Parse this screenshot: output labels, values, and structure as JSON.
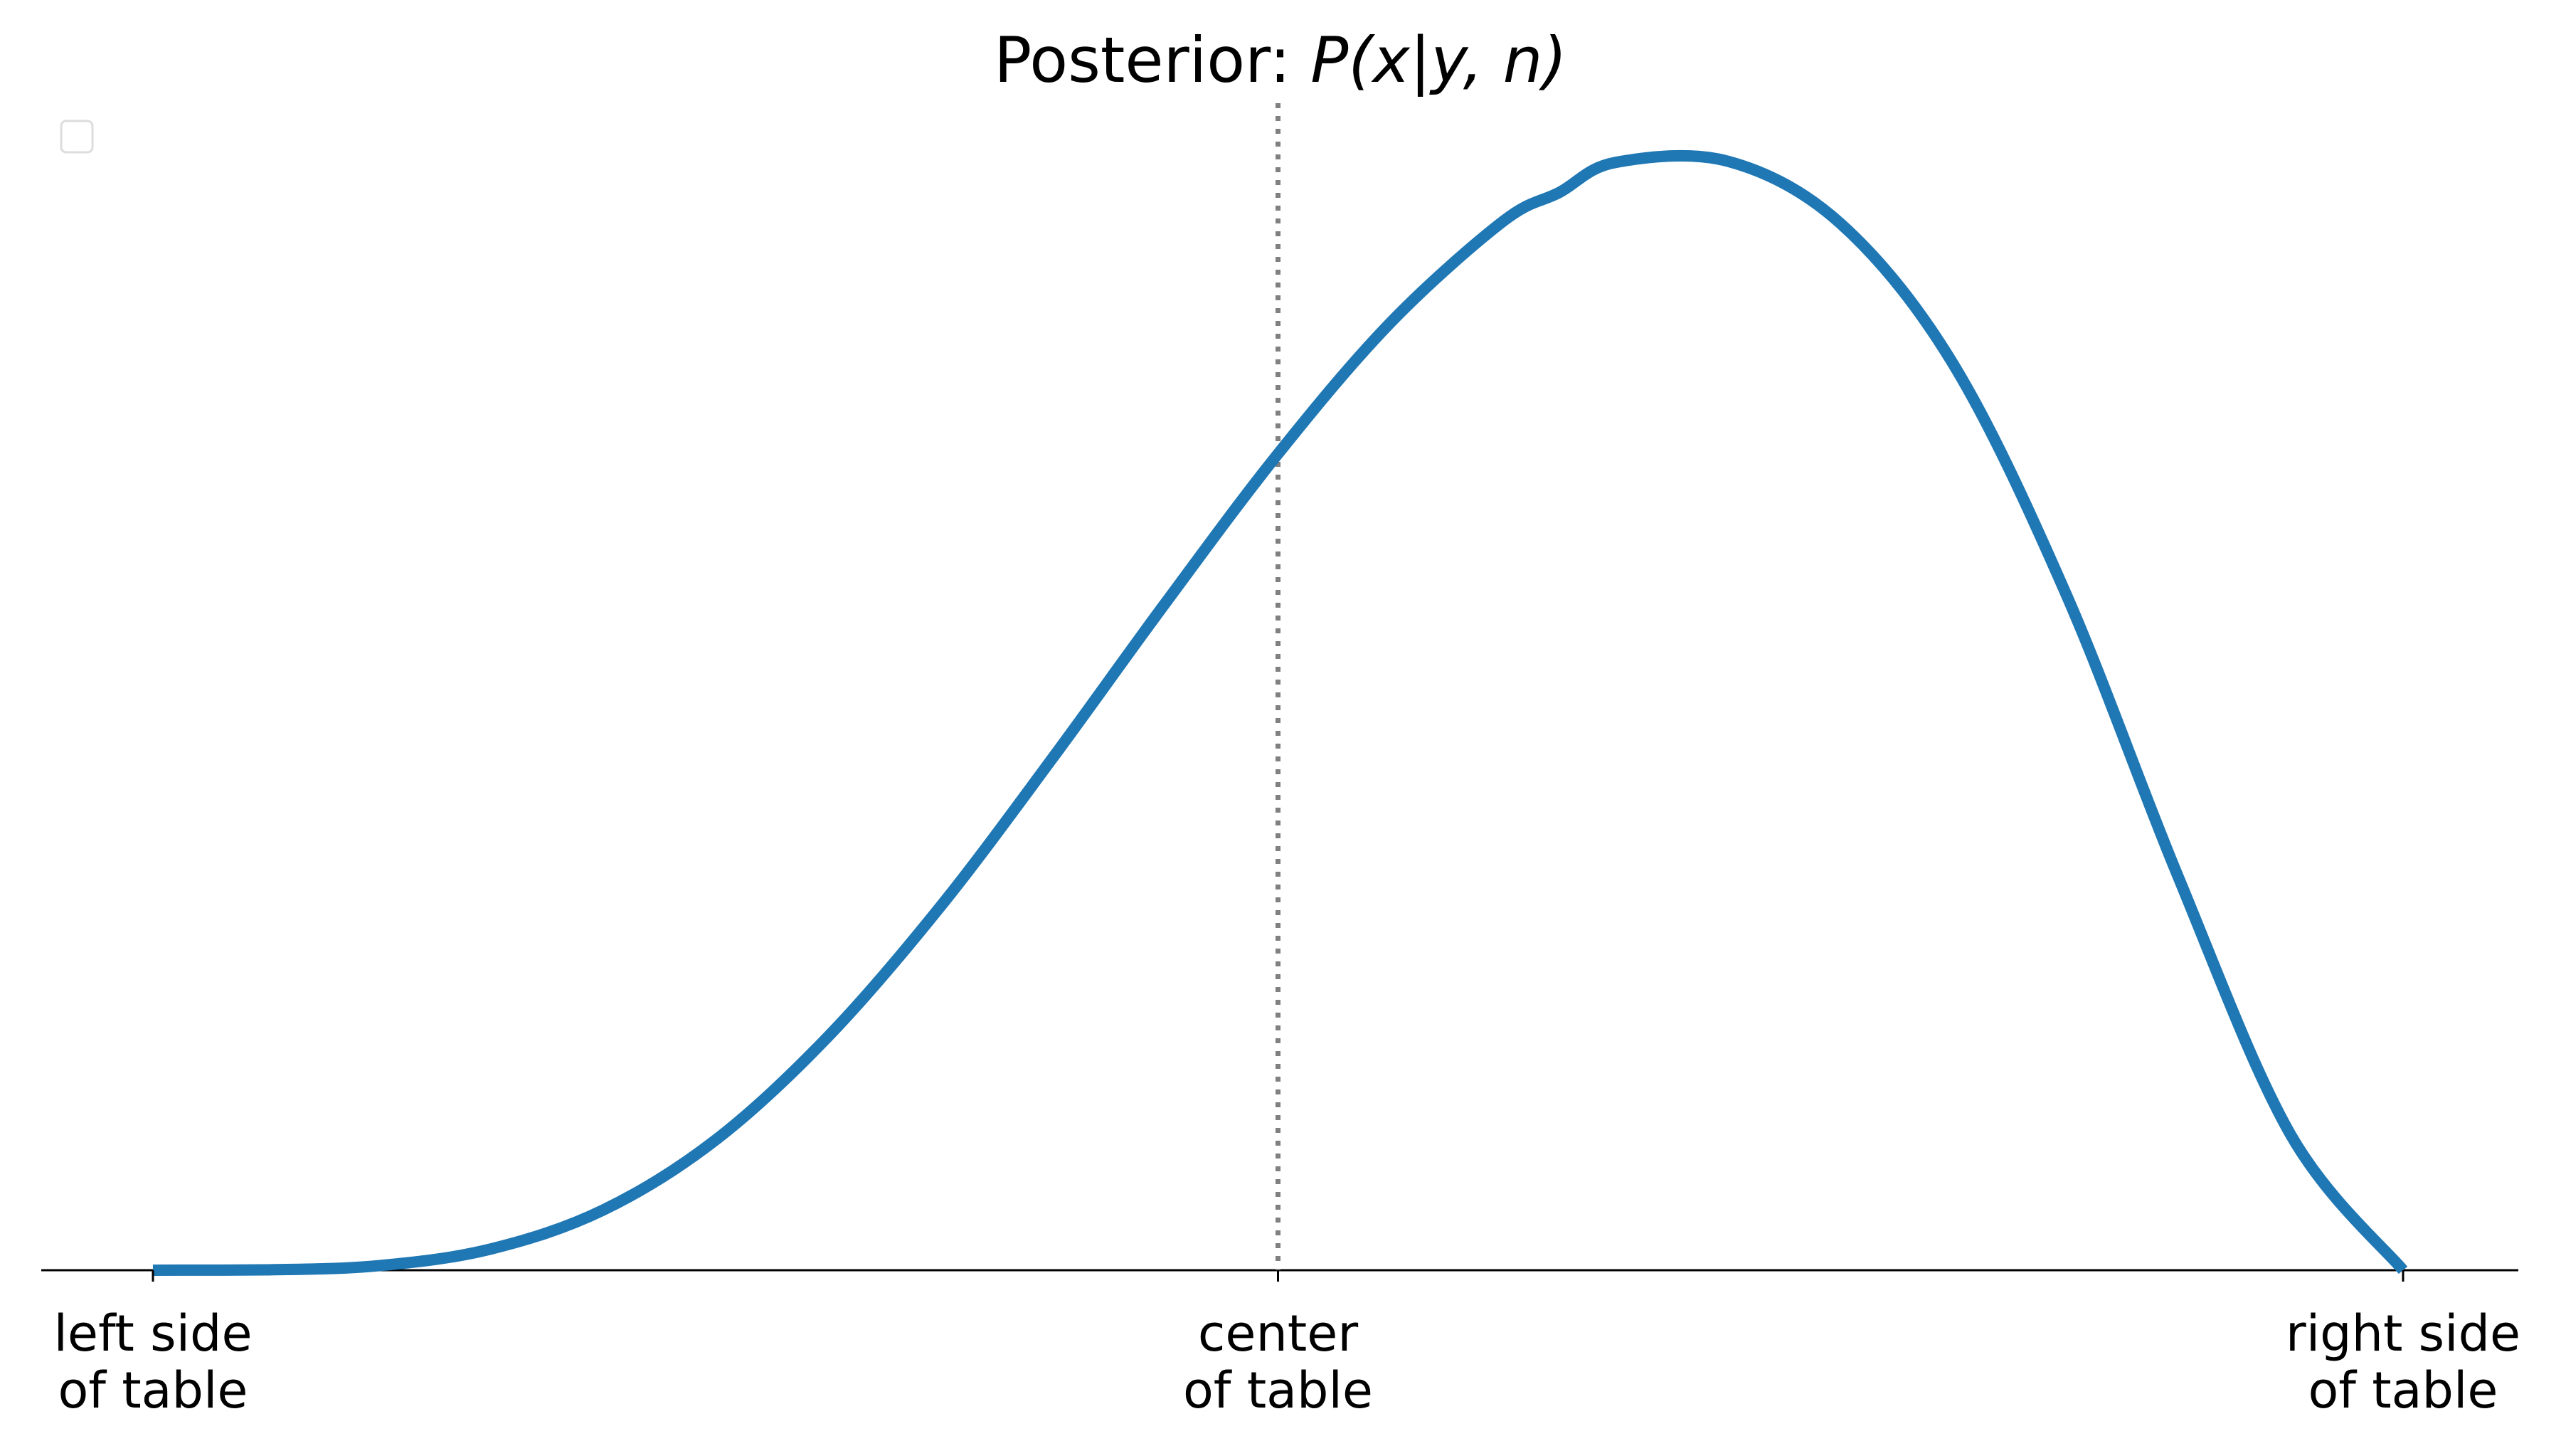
{
  "chart_data": {
    "type": "line",
    "title_prefix": "Posterior: ",
    "title_math": "P(x|y, n)",
    "xlabel": "",
    "ylabel": "",
    "xlim": [
      0,
      1
    ],
    "ylim": [
      0,
      1.05
    ],
    "grid": false,
    "legend": {
      "placement": "upper-left",
      "entries": []
    },
    "x_ticks": [
      {
        "value": 0,
        "label": [
          "left side",
          "of table"
        ]
      },
      {
        "value": 0.5,
        "label": [
          "center",
          "of table"
        ]
      },
      {
        "value": 1,
        "label": [
          "right side",
          "of table"
        ]
      }
    ],
    "reference_line": {
      "x": 0.5,
      "style": "dotted",
      "color": "#808080"
    },
    "series": [
      {
        "color": "#1f77b4",
        "x": [
          0.0,
          0.05,
          0.1,
          0.15,
          0.2,
          0.25,
          0.3,
          0.35,
          0.4,
          0.45,
          0.5,
          0.55,
          0.6,
          0.625,
          0.65,
          0.7,
          0.75,
          0.8,
          0.85,
          0.9,
          0.95,
          1.0
        ],
        "y": [
          0.0,
          0.0003,
          0.004,
          0.019,
          0.054,
          0.117,
          0.21,
          0.327,
          0.461,
          0.6,
          0.734,
          0.852,
          0.943,
          0.969,
          0.996,
          0.997,
          0.941,
          0.815,
          0.609,
          0.354,
          0.122,
          0.0
        ]
      }
    ]
  }
}
